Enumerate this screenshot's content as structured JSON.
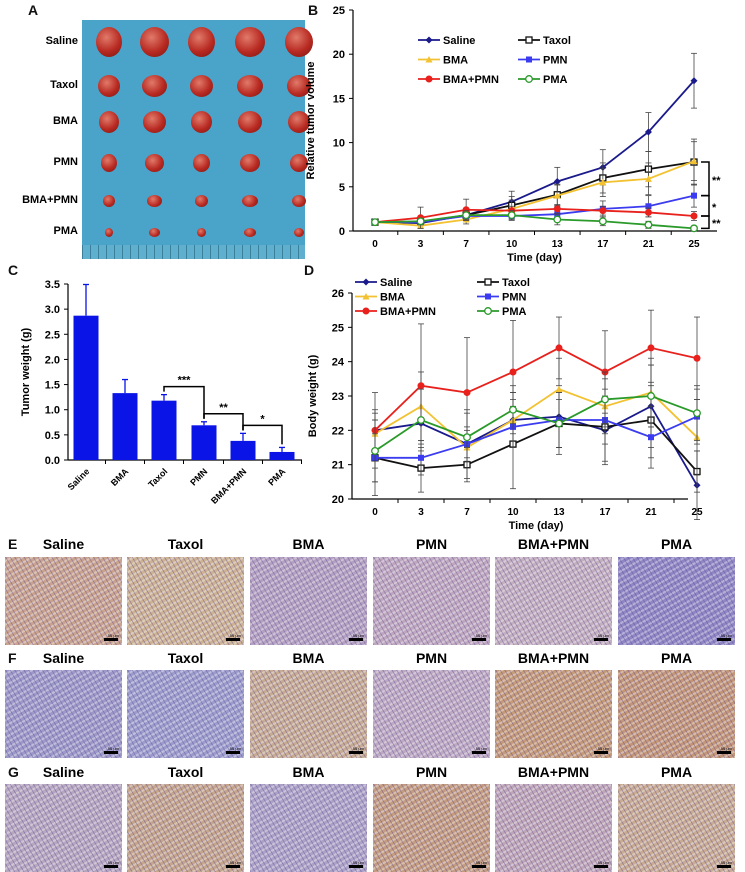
{
  "panels": {
    "a": "A",
    "b": "B",
    "c": "C",
    "d": "D",
    "e": "E",
    "f": "F",
    "g": "G"
  },
  "photo": {
    "rows": [
      "Saline",
      "Taxol",
      "BMA",
      "PMN",
      "BMA+PMN",
      "PMA"
    ],
    "background_color": "#4aa3c8",
    "tumor_color": "#b82a22"
  },
  "chart_data": [
    {
      "id": "B",
      "type": "line",
      "xlabel": "Time (day)",
      "ylabel": "Relative tumor volume",
      "x": [
        0,
        3,
        7,
        10,
        13,
        17,
        21,
        25
      ],
      "ylim": [
        0,
        25
      ],
      "yticks": [
        0,
        5,
        10,
        15,
        20,
        25
      ],
      "grid": false,
      "legend": "top-left",
      "series": [
        {
          "name": "Saline",
          "color": "#1a1a8c",
          "marker": "diamond",
          "values": [
            1,
            0.9,
            1.8,
            3.3,
            5.6,
            7.2,
            11.2,
            17.0
          ],
          "error": [
            0,
            0.3,
            0.6,
            1.2,
            1.6,
            2.0,
            2.2,
            3.1
          ]
        },
        {
          "name": "Taxol",
          "color": "#111111",
          "marker": "open-square",
          "values": [
            1,
            1.0,
            1.8,
            2.9,
            4.1,
            6.0,
            7.0,
            7.8
          ],
          "error": [
            0,
            0.3,
            0.5,
            1.0,
            1.2,
            1.7,
            2.0,
            2.6
          ]
        },
        {
          "name": "BMA",
          "color": "#f2c232",
          "marker": "triangle",
          "values": [
            1,
            0.6,
            1.3,
            2.5,
            4.0,
            5.5,
            5.9,
            7.9
          ],
          "error": [
            0,
            0.3,
            0.5,
            1.0,
            1.2,
            1.6,
            1.8,
            2.2
          ]
        },
        {
          "name": "PMN",
          "color": "#3b3bf0",
          "marker": "square",
          "values": [
            1,
            1.0,
            1.7,
            1.7,
            1.9,
            2.5,
            2.8,
            4.0
          ],
          "error": [
            0,
            0.3,
            0.5,
            0.5,
            0.6,
            0.9,
            1.2,
            1.3
          ]
        },
        {
          "name": "BMA+PMN",
          "color": "#e8211d",
          "marker": "circle",
          "values": [
            1,
            1.5,
            2.4,
            2.3,
            2.5,
            2.3,
            2.1,
            1.7
          ],
          "error": [
            0,
            1.2,
            1.2,
            0.5,
            0.5,
            0.5,
            0.5,
            0.5
          ]
        },
        {
          "name": "PMA",
          "color": "#2a9a2a",
          "marker": "open-circle",
          "values": [
            1,
            1.1,
            1.8,
            1.8,
            1.3,
            1.1,
            0.7,
            0.3
          ],
          "error": [
            0,
            0.3,
            0.5,
            0.5,
            0.6,
            0.5,
            0.4,
            0.2
          ]
        }
      ],
      "significance": [
        "**",
        "*",
        "**"
      ]
    },
    {
      "id": "C",
      "type": "bar",
      "ylabel": "Tumor weight (g)",
      "categories": [
        "Saline",
        "BMA",
        "Taxol",
        "PMN",
        "BMA+PMN",
        "PMA"
      ],
      "values": [
        2.87,
        1.33,
        1.18,
        0.69,
        0.38,
        0.16
      ],
      "error": [
        0.62,
        0.27,
        0.12,
        0.07,
        0.15,
        0.09
      ],
      "ylim": [
        0,
        3.5
      ],
      "yticks": [
        "0.0",
        "0.5",
        "1.0",
        "1.5",
        "2.0",
        "2.5",
        "3.0",
        "3.5"
      ],
      "color": "#0a14e6",
      "grid": false,
      "significance": [
        {
          "from": "Taxol",
          "to": "PMN",
          "label": "***"
        },
        {
          "from": "PMN",
          "to": "BMA+PMN",
          "label": "**"
        },
        {
          "from": "BMA+PMN",
          "to": "PMA",
          "label": "*"
        }
      ]
    },
    {
      "id": "D",
      "type": "line",
      "xlabel": "Time (day)",
      "ylabel": "Body weight (g)",
      "x": [
        0,
        3,
        7,
        10,
        13,
        17,
        21,
        25
      ],
      "ylim": [
        20,
        26
      ],
      "yticks": [
        20,
        21,
        22,
        23,
        24,
        25,
        26
      ],
      "grid": false,
      "legend": "top",
      "series": [
        {
          "name": "Saline",
          "color": "#1a1a8c",
          "marker": "diamond",
          "values": [
            22.0,
            22.2,
            21.6,
            22.3,
            22.4,
            22.0,
            22.7,
            20.4
          ],
          "error": [
            0.6,
            1.0,
            1.0,
            0.8,
            0.9,
            0.9,
            1.2,
            1.0
          ]
        },
        {
          "name": "Taxol",
          "color": "#111111",
          "marker": "open-square",
          "values": [
            21.2,
            20.9,
            21.0,
            21.6,
            22.2,
            22.1,
            22.3,
            20.8
          ],
          "error": [
            1.1,
            0.7,
            0.5,
            1.3,
            0.9,
            1.1,
            1.1,
            0.6
          ]
        },
        {
          "name": "BMA",
          "color": "#f2c232",
          "marker": "triangle",
          "values": [
            21.9,
            22.7,
            21.5,
            22.3,
            23.2,
            22.7,
            23.1,
            21.8
          ],
          "error": [
            0.6,
            1.0,
            0.6,
            0.8,
            0.9,
            0.8,
            1.0,
            1.1
          ]
        },
        {
          "name": "PMN",
          "color": "#3b3bf0",
          "marker": "square",
          "values": [
            21.2,
            21.2,
            21.6,
            22.1,
            22.3,
            22.3,
            21.8,
            22.4
          ],
          "error": [
            0.7,
            0.5,
            0.4,
            0.6,
            0.8,
            0.7,
            0.9,
            0.8
          ]
        },
        {
          "name": "BMA+PMN",
          "color": "#e8211d",
          "marker": "circle",
          "values": [
            22.0,
            23.3,
            23.1,
            23.7,
            24.4,
            23.7,
            24.4,
            24.1
          ],
          "error": [
            1.1,
            1.8,
            1.6,
            1.5,
            0.9,
            1.2,
            1.1,
            1.2
          ]
        },
        {
          "name": "PMA",
          "color": "#2a9a2a",
          "marker": "open-circle",
          "values": [
            21.4,
            22.3,
            21.8,
            22.6,
            22.2,
            22.9,
            23.0,
            22.5
          ],
          "error": [
            0.9,
            0.9,
            0.7,
            0.7,
            0.7,
            0.8,
            0.9,
            0.8
          ]
        }
      ]
    }
  ],
  "histology": {
    "labels": [
      "Saline",
      "Taxol",
      "BMA",
      "PMN",
      "BMA+PMN",
      "PMA"
    ],
    "scale_bar": "50 μm",
    "rows": [
      {
        "panel": "E",
        "tints": [
          "#c9a38e",
          "#cdb294",
          "#b4a0c0",
          "#bfa8bf",
          "#c3afbf",
          "#8f86c4"
        ]
      },
      {
        "panel": "F",
        "tints": [
          "#9c98c8",
          "#9c9ccc",
          "#c7ab93",
          "#bda9c2",
          "#c59a78",
          "#c39678"
        ]
      },
      {
        "panel": "G",
        "tints": [
          "#b7a6bf",
          "#c5a58c",
          "#aca2c6",
          "#c49c80",
          "#bfa6b7",
          "#c8ab92"
        ]
      }
    ]
  }
}
